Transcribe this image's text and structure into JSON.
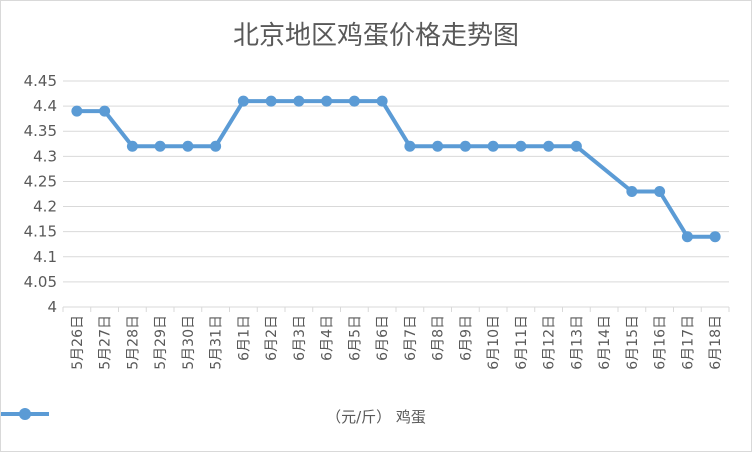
{
  "chart_data": {
    "type": "line",
    "title": "北京地区鸡蛋价格走势图",
    "xlabel": "",
    "ylabel": "",
    "ylim": [
      4,
      4.45
    ],
    "ytick_labels": [
      "4",
      "4.05",
      "4.1",
      "4.15",
      "4.2",
      "4.25",
      "4.3",
      "4.35",
      "4.4",
      "4.45"
    ],
    "categories": [
      "5月26日",
      "5月27日",
      "5月28日",
      "5月29日",
      "5月30日",
      "5月31日",
      "6月1日",
      "6月2日",
      "6月3日",
      "6月4日",
      "6月5日",
      "6月6日",
      "6月7日",
      "6月8日",
      "6月9日",
      "6月10日",
      "6月11日",
      "6月12日",
      "6月13日",
      "6月14日",
      "6月15日",
      "6月16日",
      "6月17日",
      "6月18日"
    ],
    "series": [
      {
        "name": "（元/斤） 鸡蛋",
        "color": "#5b9bd5",
        "values": [
          4.39,
          4.39,
          4.32,
          4.32,
          4.32,
          4.32,
          4.41,
          4.41,
          4.41,
          4.41,
          4.41,
          4.41,
          4.32,
          4.32,
          4.32,
          4.32,
          4.32,
          4.32,
          4.32,
          null,
          4.23,
          4.23,
          4.14,
          4.14
        ]
      }
    ],
    "grid": true,
    "legend_position": "bottom"
  }
}
